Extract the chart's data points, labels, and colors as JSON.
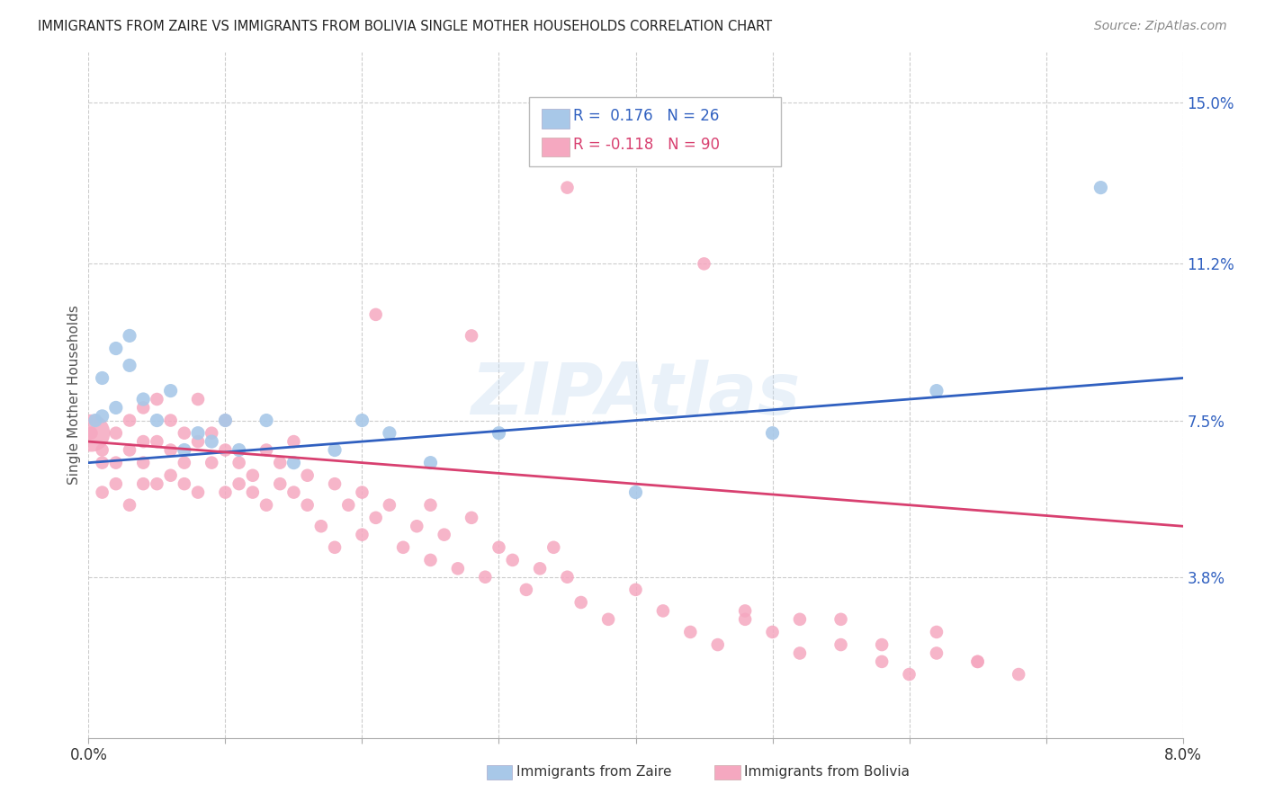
{
  "title": "IMMIGRANTS FROM ZAIRE VS IMMIGRANTS FROM BOLIVIA SINGLE MOTHER HOUSEHOLDS CORRELATION CHART",
  "source": "Source: ZipAtlas.com",
  "ylabel": "Single Mother Households",
  "zaire_R": 0.176,
  "zaire_N": 26,
  "bolivia_R": -0.118,
  "bolivia_N": 90,
  "zaire_color": "#a8c8e8",
  "bolivia_color": "#f5a8c0",
  "zaire_line_color": "#3060c0",
  "bolivia_line_color": "#d84070",
  "background_color": "#ffffff",
  "watermark": "ZIPAtlas",
  "xlim": [
    0.0,
    0.08
  ],
  "ylim": [
    0.0,
    0.162
  ],
  "ytick_values": [
    0.038,
    0.075,
    0.112,
    0.15
  ],
  "ytick_labels": [
    "3.8%",
    "7.5%",
    "11.2%",
    "15.0%"
  ],
  "xtick_positions": [
    0.0,
    0.01,
    0.02,
    0.03,
    0.04,
    0.05,
    0.06,
    0.07,
    0.08
  ],
  "zaire_x": [
    0.0005,
    0.001,
    0.001,
    0.002,
    0.002,
    0.003,
    0.003,
    0.004,
    0.005,
    0.006,
    0.007,
    0.008,
    0.009,
    0.01,
    0.011,
    0.013,
    0.015,
    0.018,
    0.02,
    0.022,
    0.025,
    0.03,
    0.04,
    0.05,
    0.062,
    0.074
  ],
  "zaire_y": [
    0.075,
    0.085,
    0.076,
    0.092,
    0.078,
    0.088,
    0.095,
    0.08,
    0.075,
    0.082,
    0.068,
    0.072,
    0.07,
    0.075,
    0.068,
    0.075,
    0.065,
    0.068,
    0.075,
    0.072,
    0.065,
    0.072,
    0.058,
    0.072,
    0.082,
    0.13
  ],
  "bolivia_x": [
    0.0002,
    0.001,
    0.001,
    0.001,
    0.002,
    0.002,
    0.002,
    0.003,
    0.003,
    0.003,
    0.004,
    0.004,
    0.004,
    0.004,
    0.005,
    0.005,
    0.005,
    0.006,
    0.006,
    0.006,
    0.007,
    0.007,
    0.007,
    0.008,
    0.008,
    0.008,
    0.009,
    0.009,
    0.01,
    0.01,
    0.01,
    0.011,
    0.011,
    0.012,
    0.012,
    0.013,
    0.013,
    0.014,
    0.014,
    0.015,
    0.015,
    0.016,
    0.016,
    0.017,
    0.018,
    0.018,
    0.019,
    0.02,
    0.02,
    0.021,
    0.022,
    0.023,
    0.024,
    0.025,
    0.025,
    0.026,
    0.027,
    0.028,
    0.029,
    0.03,
    0.031,
    0.032,
    0.033,
    0.034,
    0.035,
    0.036,
    0.038,
    0.04,
    0.042,
    0.044,
    0.046,
    0.048,
    0.05,
    0.052,
    0.055,
    0.058,
    0.06,
    0.062,
    0.065,
    0.068,
    0.021,
    0.028,
    0.035,
    0.045,
    0.055,
    0.062,
    0.048,
    0.052,
    0.058,
    0.065
  ],
  "bolivia_y": [
    0.072,
    0.065,
    0.068,
    0.058,
    0.072,
    0.06,
    0.065,
    0.068,
    0.055,
    0.075,
    0.07,
    0.06,
    0.078,
    0.065,
    0.08,
    0.07,
    0.06,
    0.075,
    0.062,
    0.068,
    0.072,
    0.06,
    0.065,
    0.058,
    0.07,
    0.08,
    0.065,
    0.072,
    0.058,
    0.068,
    0.075,
    0.06,
    0.065,
    0.058,
    0.062,
    0.055,
    0.068,
    0.06,
    0.065,
    0.058,
    0.07,
    0.055,
    0.062,
    0.05,
    0.06,
    0.045,
    0.055,
    0.048,
    0.058,
    0.052,
    0.055,
    0.045,
    0.05,
    0.042,
    0.055,
    0.048,
    0.04,
    0.052,
    0.038,
    0.045,
    0.042,
    0.035,
    0.04,
    0.045,
    0.038,
    0.032,
    0.028,
    0.035,
    0.03,
    0.025,
    0.022,
    0.028,
    0.025,
    0.02,
    0.022,
    0.018,
    0.015,
    0.02,
    0.018,
    0.015,
    0.1,
    0.095,
    0.13,
    0.112,
    0.028,
    0.025,
    0.03,
    0.028,
    0.022,
    0.018
  ],
  "bolivia_large_x": [
    0.0002
  ],
  "bolivia_large_y": [
    0.072
  ],
  "bolivia_large_size": 800
}
